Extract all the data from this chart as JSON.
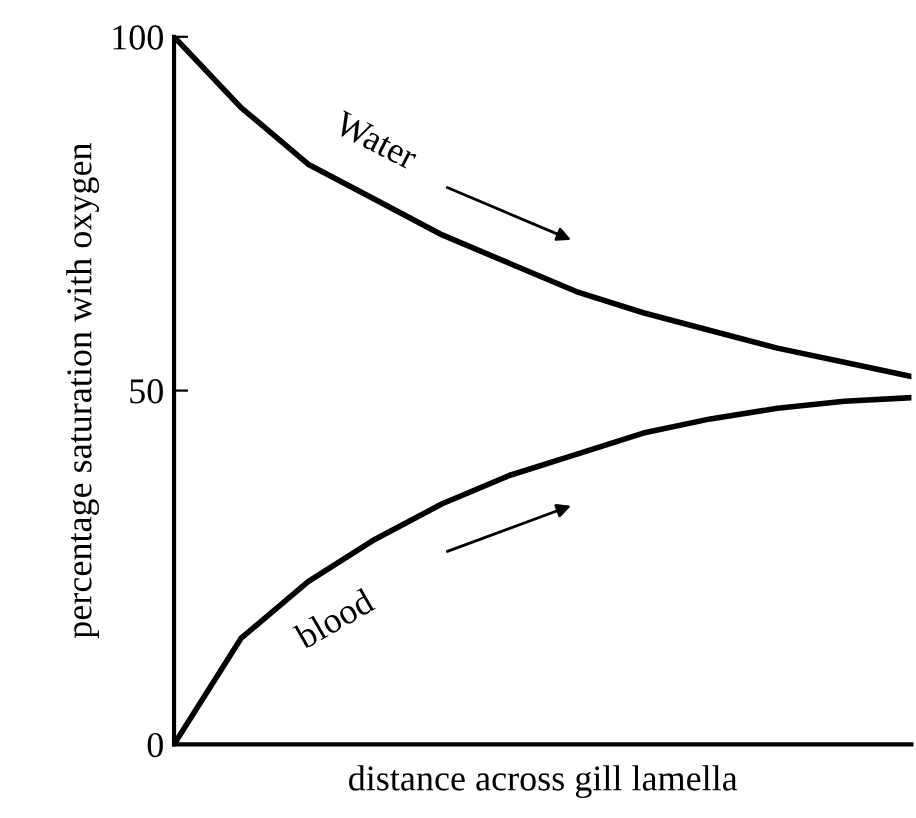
{
  "chart_data": {
    "type": "line",
    "xlabel": "distance across gill lamella",
    "ylabel": "percentage saturation with oxygen",
    "categories": [
      null,
      null,
      null,
      null,
      null,
      null,
      null,
      null,
      null,
      null,
      null,
      null
    ],
    "series": [
      {
        "name": "Water",
        "color": "#000000",
        "values": [
          100,
          90,
          82,
          77,
          72,
          68,
          64,
          61,
          58.5,
          56,
          54,
          52
        ]
      },
      {
        "name": "blood",
        "color": "#000000",
        "values": [
          0,
          15,
          23,
          29,
          34,
          38,
          41,
          44,
          46,
          47.5,
          48.5,
          49
        ]
      }
    ],
    "ylim": [
      0,
      100
    ],
    "yticks": [
      0,
      50,
      100
    ],
    "grid": false,
    "legend": false,
    "marker": "none",
    "line_style": "solid"
  }
}
